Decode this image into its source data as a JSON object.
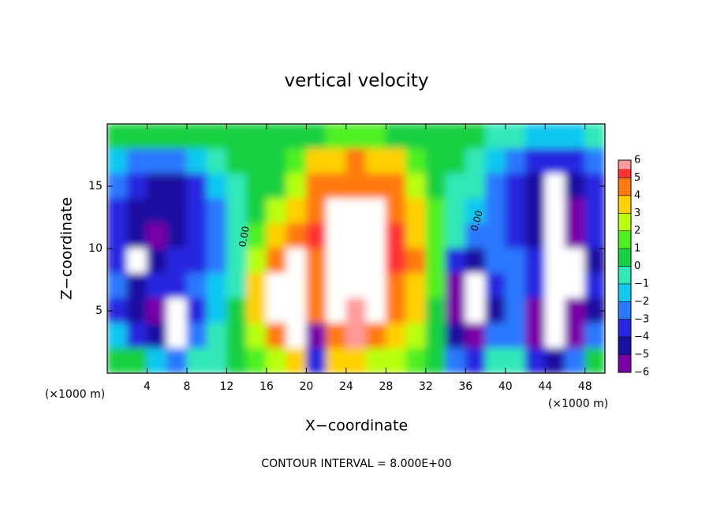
{
  "chart_data": {
    "type": "heatmap",
    "title": "vertical velocity",
    "x_label": "X−coordinate",
    "y_label": "Z−coordinate",
    "x_unit_labels": [
      "(×1000 m)",
      "(×1000 m)"
    ],
    "footnote": "CONTOUR INTERVAL = 8.000E+00",
    "contour_labels": [
      "0.00",
      "0.00"
    ],
    "xlim": [
      0,
      50
    ],
    "ylim": [
      0,
      20
    ],
    "xticks": [
      4,
      8,
      12,
      16,
      20,
      24,
      28,
      32,
      36,
      40,
      44,
      48
    ],
    "yticks": [
      5,
      10,
      15
    ],
    "x": [
      1,
      3,
      5,
      7,
      9,
      11,
      13,
      15,
      17,
      19,
      21,
      23,
      25,
      27,
      29,
      31,
      33,
      35,
      37,
      39,
      41,
      43,
      45,
      47,
      49
    ],
    "y": [
      19,
      17,
      15,
      13,
      11,
      9,
      7,
      5,
      3,
      1
    ],
    "values": [
      [
        0.5,
        0.5,
        0.5,
        0.5,
        0.5,
        0.5,
        0.5,
        0.5,
        0.5,
        0.8,
        1,
        1.5,
        1.5,
        1.5,
        1,
        0.8,
        0.5,
        0.5,
        0.3,
        0,
        -0.5,
        -1,
        -1,
        -1,
        -0.5
      ],
      [
        -1,
        -2,
        -2.5,
        -2,
        -1.5,
        -0.5,
        0.3,
        0.5,
        1,
        2,
        3.5,
        4,
        4.5,
        4,
        3.5,
        2,
        0.8,
        0.3,
        0,
        -1,
        -2.5,
        -3.5,
        -3,
        -3,
        -2
      ],
      [
        -2,
        -3.5,
        -4,
        -4,
        -3,
        -1.5,
        0,
        0.5,
        1,
        2.5,
        4.5,
        5,
        5,
        5,
        4.5,
        3,
        1,
        0,
        -0.5,
        -2,
        -3.5,
        -4.5,
        -7,
        -4,
        -3
      ],
      [
        -3,
        -4,
        -4.5,
        -4.5,
        -3.5,
        -2,
        0,
        1,
        2.5,
        3.5,
        5,
        6.5,
        7,
        6.5,
        5,
        4,
        1.5,
        0,
        -1,
        -2.5,
        -3,
        -4.5,
        -7,
        -5,
        -3.5
      ],
      [
        -3.5,
        -4.5,
        -5,
        -4.5,
        -3.5,
        -2,
        0,
        2,
        4,
        5,
        5.5,
        8,
        8,
        7,
        5.5,
        4,
        2,
        -0.5,
        -2.5,
        -2,
        -3,
        -4.5,
        -7,
        -5.5,
        -3
      ],
      [
        -3,
        -7,
        -4,
        -3.5,
        -3,
        -2,
        -0.5,
        3,
        5,
        7,
        5,
        8,
        8,
        7,
        5.5,
        4.5,
        2,
        -3,
        -4,
        -2,
        -2.5,
        -3.5,
        -7,
        -7,
        -4
      ],
      [
        -2.5,
        -4,
        -3.5,
        -3.5,
        -2.5,
        -1.5,
        0,
        4,
        7,
        8,
        5,
        8,
        7,
        8,
        5,
        4,
        1.5,
        -5,
        -7,
        -3,
        -2.5,
        -3.5,
        -7,
        -7,
        -3
      ],
      [
        -3,
        -4.5,
        -5,
        -7,
        -3,
        -1,
        0.2,
        4,
        7,
        8,
        5,
        8,
        6,
        8,
        5,
        4,
        1,
        -5,
        -7,
        -4,
        -2.5,
        -5,
        -7,
        -6,
        -4
      ],
      [
        -1.5,
        -3,
        -4.5,
        -7,
        -2,
        -0.5,
        0.3,
        3,
        5,
        7,
        -5,
        5,
        6,
        5,
        4,
        3,
        1,
        -4,
        -5.5,
        -2,
        -2,
        -5.5,
        -7,
        -5,
        -2
      ],
      [
        1,
        0.5,
        -1,
        -2,
        -0.5,
        0,
        0.5,
        1.5,
        3,
        4,
        -3,
        4,
        4,
        3,
        2.5,
        2,
        0.5,
        -2,
        -3,
        0,
        -0.5,
        -3,
        -4,
        -2,
        1
      ]
    ],
    "colorbar": {
      "ticks": [
        {
          "value": -6,
          "label": "−6"
        },
        {
          "value": -5,
          "label": "−5"
        },
        {
          "value": -4,
          "label": "−4"
        },
        {
          "value": -3,
          "label": "−3"
        },
        {
          "value": -2,
          "label": "−2"
        },
        {
          "value": -1,
          "label": "−1"
        },
        0,
        1,
        2,
        3,
        4,
        5,
        6
      ],
      "colors": [
        "#7a00a8",
        "#1a10a0",
        "#2626e0",
        "#2a78ff",
        "#10c8f0",
        "#30e8b8",
        "#18d040",
        "#50f020",
        "#b8ff10",
        "#ffd000",
        "#ff7a10",
        "#ff3030"
      ],
      "top_color": "#ff9a9a"
    }
  }
}
